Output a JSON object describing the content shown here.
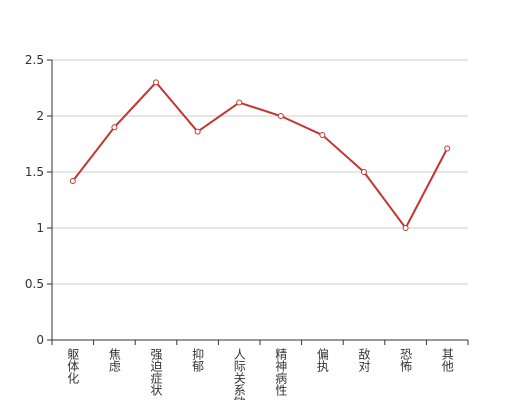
{
  "chart_data": {
    "type": "line",
    "categories": [
      "躯体化",
      "焦虑",
      "强迫症状",
      "抑郁",
      "人际关系敏感",
      "精神病性",
      "偏执",
      "敌对",
      "恐怖",
      "其他"
    ],
    "values": [
      1.42,
      1.9,
      2.3,
      1.86,
      2.12,
      2.0,
      1.83,
      1.5,
      1.0,
      1.71
    ],
    "color": "#c23531",
    "ylim": [
      0,
      2.5
    ],
    "yticks": [
      0,
      0.5,
      1,
      1.5,
      2,
      2.5
    ],
    "grid": true
  }
}
